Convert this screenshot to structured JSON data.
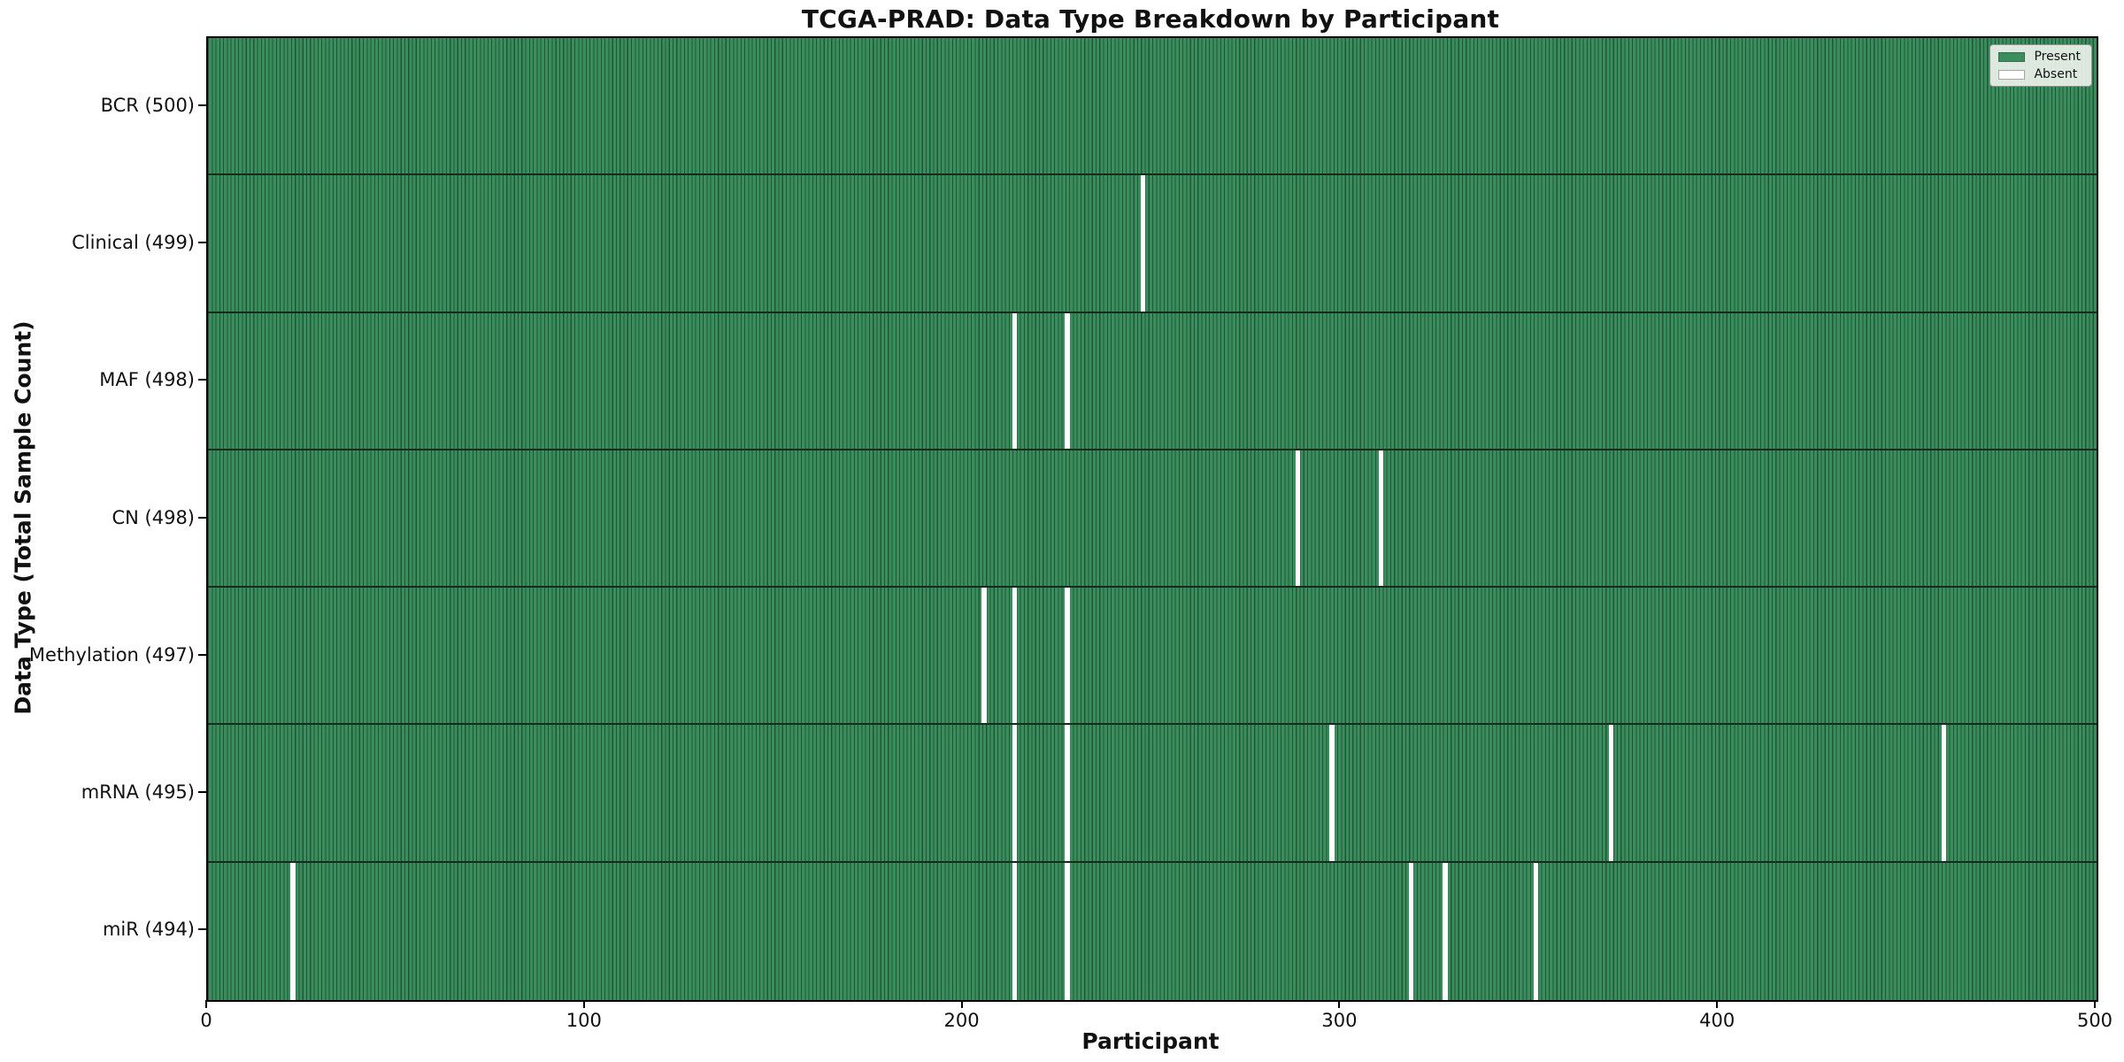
{
  "chart_data": {
    "type": "heatmap",
    "title": "TCGA-PRAD: Data Type Breakdown by Participant",
    "xlabel": "Participant",
    "ylabel": "Data Type (Total Sample Count)",
    "x_range": [
      0,
      500
    ],
    "x_ticks": [
      0,
      100,
      200,
      300,
      400,
      500
    ],
    "n_participants": 500,
    "grid": false,
    "legend_position": "upper right",
    "legend": [
      {
        "label": "Present",
        "color": "#3a8e5e"
      },
      {
        "label": "Absent",
        "color": "#ffffff"
      }
    ],
    "rows": [
      {
        "name": "BCR",
        "label": "BCR (500)",
        "total": 500,
        "absent_participants": []
      },
      {
        "name": "Clinical",
        "label": "Clinical (499)",
        "total": 499,
        "absent_participants": [
          247
        ]
      },
      {
        "name": "MAF",
        "label": "MAF (498)",
        "total": 498,
        "absent_participants": [
          213,
          227
        ]
      },
      {
        "name": "CN",
        "label": "CN (498)",
        "total": 498,
        "absent_participants": [
          288,
          310
        ]
      },
      {
        "name": "Methylation",
        "label": "Methylation (497)",
        "total": 497,
        "absent_participants": [
          205,
          213,
          227
        ]
      },
      {
        "name": "mRNA",
        "label": "mRNA (495)",
        "total": 495,
        "absent_participants": [
          213,
          227,
          297,
          371,
          459
        ]
      },
      {
        "name": "miR",
        "label": "miR (494)",
        "total": 494,
        "absent_participants": [
          22,
          213,
          227,
          318,
          327,
          351
        ]
      }
    ],
    "colors": {
      "present": "#3a8e5e",
      "bar_edge": "#215537",
      "absent": "#ffffff",
      "row_divider": "#152b1e",
      "plot_border": "#000000",
      "legend_bg": "#ecf2ec",
      "tick": "#000000"
    }
  }
}
